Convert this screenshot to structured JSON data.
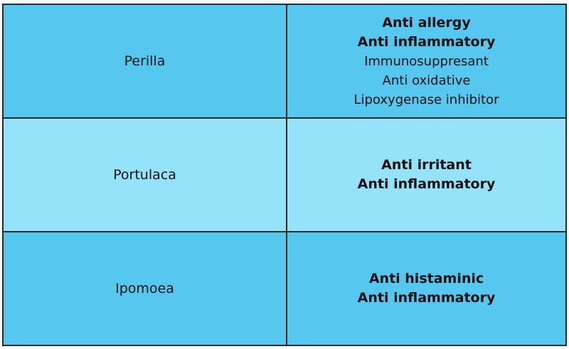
{
  "table": {
    "rows": [
      {
        "name": "Perilla",
        "color": "#56c8f0",
        "effects": [
          {
            "text": "Anti allergy",
            "bold": true
          },
          {
            "text": "Anti inflammatory",
            "bold": true
          },
          {
            "text": "Immunosuppresant",
            "bold": false
          },
          {
            "text": "Anti oxidative",
            "bold": false
          },
          {
            "text": "Lipoxygenase inhibitor",
            "bold": false
          }
        ]
      },
      {
        "name": "Portulaca",
        "color": "#94e3fb",
        "effects": [
          {
            "text": "Anti irritant",
            "bold": true
          },
          {
            "text": "Anti inflammatory",
            "bold": true
          }
        ]
      },
      {
        "name": "Ipomoea",
        "color": "#56c8f0",
        "effects": [
          {
            "text": "Anti histaminic",
            "bold": true
          },
          {
            "text": "Anti inflammatory",
            "bold": true
          }
        ]
      }
    ]
  }
}
